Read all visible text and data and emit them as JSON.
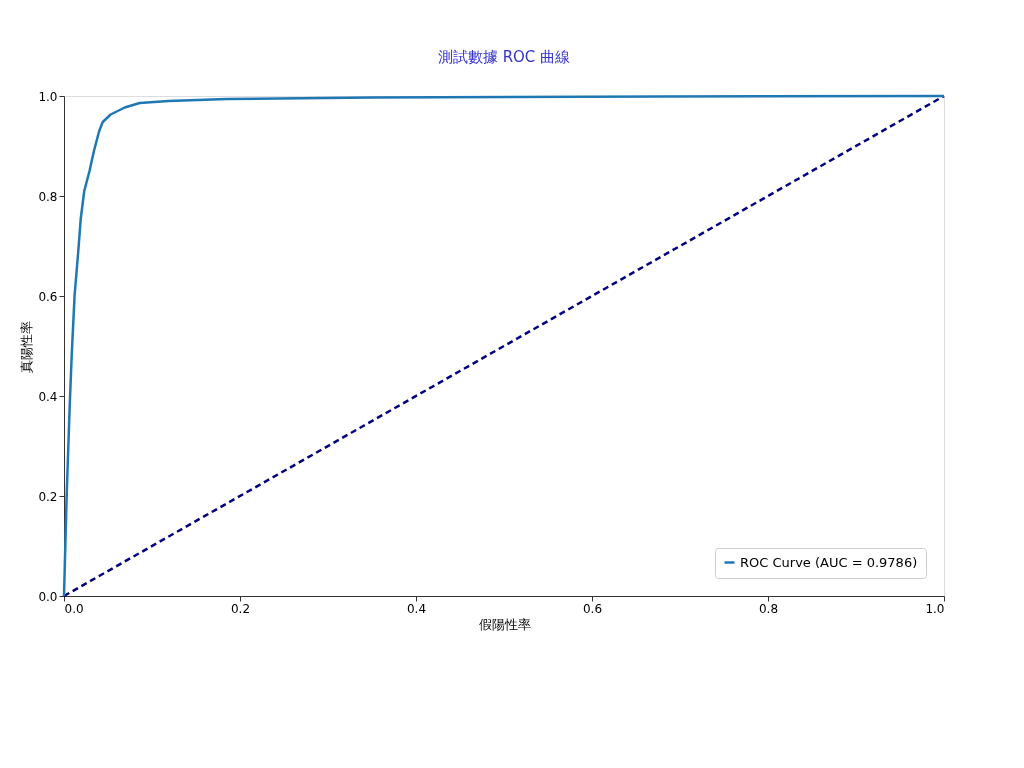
{
  "chart_data": {
    "type": "line",
    "title": "測試數據 ROC 曲線",
    "xlabel": "假陽性率",
    "ylabel": "真陽性率",
    "xlim": [
      0,
      1
    ],
    "ylim": [
      0,
      1
    ],
    "xticks": [
      {
        "value": 0,
        "label": "0.0"
      },
      0.2,
      0.4,
      0.6,
      0.8,
      {
        "value": 1,
        "label": "1.0"
      }
    ],
    "yticks": [
      {
        "value": 0,
        "label": "0.0"
      },
      0.2,
      0.4,
      0.6,
      0.8,
      {
        "value": 1,
        "label": "1.0"
      }
    ],
    "grid": false,
    "legend": "bottom right",
    "series": [
      {
        "name": "ROC Curve (AUC = 0.9786)",
        "color": "#1f77b4",
        "line_style": "solid",
        "x": [
          0,
          0.003,
          0.0066,
          0.0088,
          0.012,
          0.0165,
          0.019,
          0.023,
          0.029,
          0.034,
          0.04,
          0.044,
          0.053,
          0.069,
          0.086,
          0.119,
          0.185,
          0.35,
          0.68,
          1.0
        ],
        "values": [
          0,
          0.2,
          0.386,
          0.483,
          0.6,
          0.696,
          0.754,
          0.81,
          0.85,
          0.89,
          0.93,
          0.948,
          0.963,
          0.977,
          0.986,
          0.99,
          0.994,
          0.997,
          0.999,
          1.0
        ]
      },
      {
        "color": "#000080",
        "line_style": "dashed",
        "x": [
          0,
          1
        ],
        "values": [
          0,
          1
        ]
      }
    ]
  }
}
